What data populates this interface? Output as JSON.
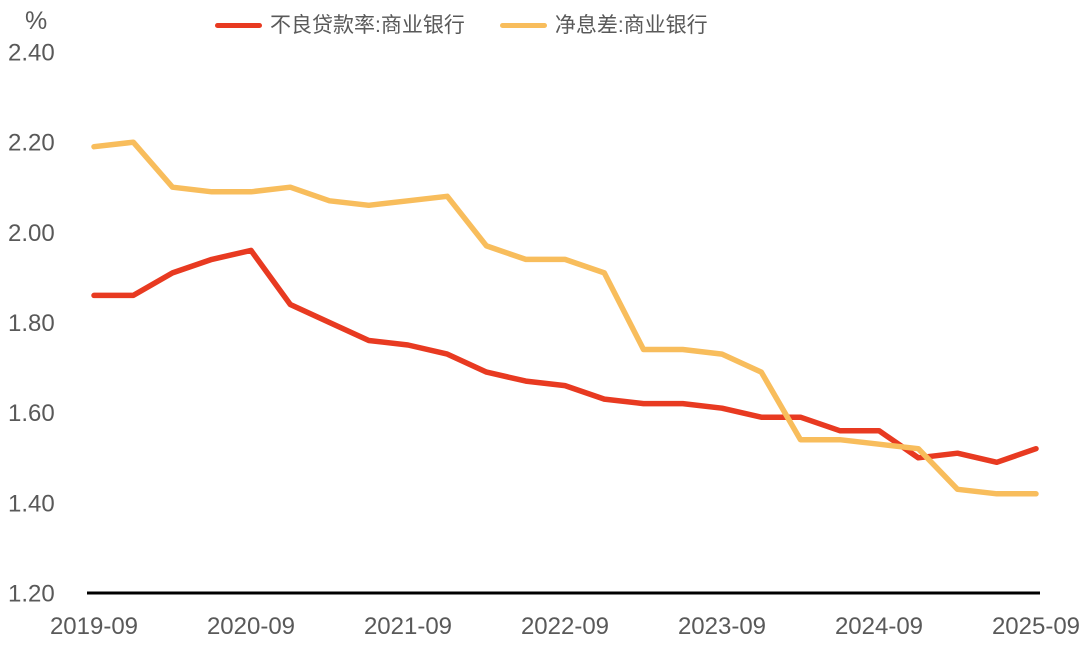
{
  "chart_data": {
    "type": "line",
    "title": "",
    "unit": "%",
    "xlabel": "",
    "ylabel": "%",
    "ylim": [
      1.2,
      2.4
    ],
    "grid": false,
    "legend_position": "top",
    "axis_color": "#000000",
    "tick_label_color": "#595959",
    "categories": [
      "2019-09",
      "2019-12",
      "2020-03",
      "2020-06",
      "2020-09",
      "2020-12",
      "2021-03",
      "2021-06",
      "2021-09",
      "2021-12",
      "2022-03",
      "2022-06",
      "2022-09",
      "2022-12",
      "2023-03",
      "2023-06",
      "2023-09",
      "2023-12",
      "2024-03",
      "2024-06",
      "2024-09",
      "2024-12",
      "2025-03",
      "2025-06",
      "2025-09"
    ],
    "series": [
      {
        "name": "不良贷款率:商业银行",
        "color": "#E83A21",
        "values": [
          1.86,
          1.86,
          1.91,
          1.94,
          1.96,
          1.84,
          1.8,
          1.76,
          1.75,
          1.73,
          1.69,
          1.67,
          1.66,
          1.63,
          1.62,
          1.62,
          1.61,
          1.59,
          1.59,
          1.56,
          1.56,
          1.5,
          1.51,
          1.49,
          1.52
        ]
      },
      {
        "name": "净息差:商业银行",
        "color": "#F8BD5C",
        "values": [
          2.19,
          2.2,
          2.1,
          2.09,
          2.09,
          2.1,
          2.07,
          2.06,
          2.07,
          2.08,
          1.97,
          1.94,
          1.94,
          1.91,
          1.74,
          1.74,
          1.73,
          1.69,
          1.54,
          1.54,
          1.53,
          1.52,
          1.43,
          1.42,
          1.42
        ]
      }
    ],
    "y_ticks": [
      "2.40",
      "2.20",
      "2.00",
      "1.80",
      "1.60",
      "1.40",
      "1.20"
    ],
    "x_tick_labels": [
      "2019-09",
      "2020-09",
      "2021-09",
      "2022-09",
      "2023-09",
      "2024-09",
      "2025-09"
    ]
  }
}
